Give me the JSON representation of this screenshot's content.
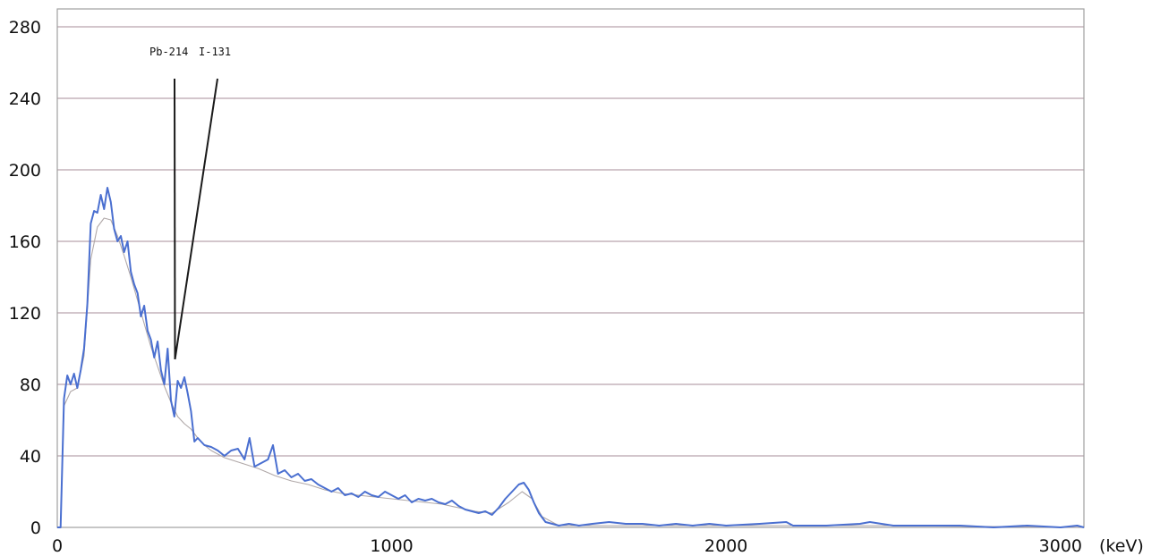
{
  "chart_data": {
    "type": "line",
    "title": "",
    "xlabel": "",
    "ylabel": "",
    "x_unit_label": "(keV)",
    "xlim": [
      0,
      3070
    ],
    "ylim": [
      0,
      280
    ],
    "x_ticks": [
      0,
      1000,
      2000,
      3000
    ],
    "x_tick_labels": [
      "0",
      "1000",
      "2000",
      "3000"
    ],
    "y_ticks": [
      0,
      40,
      80,
      120,
      160,
      200,
      240,
      280
    ],
    "y_tick_labels": [
      "0",
      "40",
      "80",
      "120",
      "160",
      "200",
      "240",
      "280"
    ],
    "grid": "horizontal",
    "legend": "none",
    "annotations": [
      {
        "text": "Pb-214",
        "energy": 352
      },
      {
        "text": "I-131",
        "energy": 364
      }
    ],
    "series": [
      {
        "color": "#4a6fd0",
        "points": [
          [
            0,
            0
          ],
          [
            10,
            0
          ],
          [
            20,
            72
          ],
          [
            30,
            85
          ],
          [
            40,
            80
          ],
          [
            50,
            86
          ],
          [
            60,
            78
          ],
          [
            70,
            88
          ],
          [
            80,
            100
          ],
          [
            90,
            125
          ],
          [
            100,
            170
          ],
          [
            110,
            177
          ],
          [
            120,
            176
          ],
          [
            130,
            186
          ],
          [
            140,
            178
          ],
          [
            150,
            190
          ],
          [
            160,
            182
          ],
          [
            170,
            167
          ],
          [
            180,
            160
          ],
          [
            190,
            163
          ],
          [
            200,
            154
          ],
          [
            210,
            160
          ],
          [
            220,
            143
          ],
          [
            230,
            136
          ],
          [
            240,
            131
          ],
          [
            250,
            118
          ],
          [
            260,
            124
          ],
          [
            270,
            110
          ],
          [
            280,
            105
          ],
          [
            290,
            95
          ],
          [
            300,
            104
          ],
          [
            310,
            88
          ],
          [
            320,
            80
          ],
          [
            330,
            100
          ],
          [
            340,
            71
          ],
          [
            350,
            62
          ],
          [
            360,
            82
          ],
          [
            370,
            78
          ],
          [
            380,
            84
          ],
          [
            390,
            75
          ],
          [
            400,
            65
          ],
          [
            410,
            48
          ],
          [
            420,
            50
          ],
          [
            440,
            46
          ],
          [
            460,
            45
          ],
          [
            480,
            43
          ],
          [
            500,
            40
          ],
          [
            520,
            43
          ],
          [
            540,
            44
          ],
          [
            560,
            38
          ],
          [
            575,
            50
          ],
          [
            590,
            34
          ],
          [
            610,
            36
          ],
          [
            630,
            38
          ],
          [
            645,
            46
          ],
          [
            660,
            30
          ],
          [
            680,
            32
          ],
          [
            700,
            28
          ],
          [
            720,
            30
          ],
          [
            740,
            26
          ],
          [
            760,
            27
          ],
          [
            780,
            24
          ],
          [
            800,
            22
          ],
          [
            820,
            20
          ],
          [
            840,
            22
          ],
          [
            860,
            18
          ],
          [
            880,
            19
          ],
          [
            900,
            17
          ],
          [
            920,
            20
          ],
          [
            940,
            18
          ],
          [
            960,
            17
          ],
          [
            980,
            20
          ],
          [
            1000,
            18
          ],
          [
            1020,
            16
          ],
          [
            1040,
            18
          ],
          [
            1060,
            14
          ],
          [
            1080,
            16
          ],
          [
            1100,
            15
          ],
          [
            1120,
            16
          ],
          [
            1140,
            14
          ],
          [
            1160,
            13
          ],
          [
            1180,
            15
          ],
          [
            1200,
            12
          ],
          [
            1220,
            10
          ],
          [
            1240,
            9
          ],
          [
            1260,
            8
          ],
          [
            1280,
            9
          ],
          [
            1300,
            7
          ],
          [
            1320,
            11
          ],
          [
            1340,
            16
          ],
          [
            1360,
            20
          ],
          [
            1380,
            24
          ],
          [
            1395,
            25
          ],
          [
            1410,
            21
          ],
          [
            1425,
            14
          ],
          [
            1440,
            8
          ],
          [
            1460,
            3
          ],
          [
            1480,
            2
          ],
          [
            1500,
            1
          ],
          [
            1530,
            2
          ],
          [
            1560,
            1
          ],
          [
            1600,
            2
          ],
          [
            1650,
            3
          ],
          [
            1700,
            2
          ],
          [
            1750,
            2
          ],
          [
            1800,
            1
          ],
          [
            1850,
            2
          ],
          [
            1900,
            1
          ],
          [
            1950,
            2
          ],
          [
            2000,
            1
          ],
          [
            2100,
            2
          ],
          [
            2180,
            3
          ],
          [
            2200,
            1
          ],
          [
            2300,
            1
          ],
          [
            2400,
            2
          ],
          [
            2430,
            3
          ],
          [
            2500,
            1
          ],
          [
            2600,
            1
          ],
          [
            2700,
            1
          ],
          [
            2800,
            0
          ],
          [
            2900,
            1
          ],
          [
            3000,
            0
          ],
          [
            3050,
            1
          ],
          [
            3070,
            0
          ]
        ]
      },
      {
        "color": "#b0a8a8",
        "points": [
          [
            0,
            0
          ],
          [
            10,
            0
          ],
          [
            20,
            68
          ],
          [
            40,
            76
          ],
          [
            60,
            78
          ],
          [
            80,
            96
          ],
          [
            100,
            150
          ],
          [
            120,
            168
          ],
          [
            140,
            173
          ],
          [
            160,
            172
          ],
          [
            180,
            163
          ],
          [
            200,
            152
          ],
          [
            220,
            140
          ],
          [
            240,
            127
          ],
          [
            260,
            114
          ],
          [
            280,
            101
          ],
          [
            300,
            90
          ],
          [
            320,
            79
          ],
          [
            340,
            70
          ],
          [
            360,
            62
          ],
          [
            380,
            58
          ],
          [
            400,
            55
          ],
          [
            420,
            50
          ],
          [
            440,
            46
          ],
          [
            460,
            43
          ],
          [
            480,
            41
          ],
          [
            500,
            39
          ],
          [
            550,
            36
          ],
          [
            600,
            33
          ],
          [
            650,
            29
          ],
          [
            700,
            26
          ],
          [
            750,
            24
          ],
          [
            800,
            21
          ],
          [
            850,
            19
          ],
          [
            900,
            18
          ],
          [
            950,
            17
          ],
          [
            1000,
            16
          ],
          [
            1050,
            15
          ],
          [
            1100,
            14
          ],
          [
            1150,
            13
          ],
          [
            1200,
            11
          ],
          [
            1250,
            9
          ],
          [
            1300,
            8
          ],
          [
            1350,
            14
          ],
          [
            1390,
            20
          ],
          [
            1420,
            16
          ],
          [
            1450,
            6
          ],
          [
            1500,
            1
          ],
          [
            1700,
            1
          ],
          [
            2000,
            1
          ],
          [
            2500,
            1
          ],
          [
            3070,
            0
          ]
        ]
      }
    ]
  }
}
